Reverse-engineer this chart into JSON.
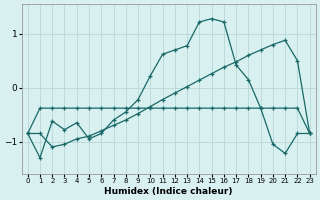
{
  "xlabel": "Humidex (Indice chaleur)",
  "bg_color": "#d8f0f0",
  "grid_color": "#b8d8d8",
  "line_color": "#1a6868",
  "xlim": [
    -0.5,
    23.5
  ],
  "ylim": [
    -1.6,
    1.55
  ],
  "yticks": [
    -1,
    0,
    1
  ],
  "xticks": [
    0,
    1,
    2,
    3,
    4,
    5,
    6,
    7,
    8,
    9,
    10,
    11,
    12,
    13,
    14,
    15,
    16,
    17,
    18,
    19,
    20,
    21,
    22,
    23
  ],
  "line1_x": [
    0,
    1,
    2,
    3,
    4,
    5,
    6,
    7,
    8,
    9,
    10,
    11,
    12,
    13,
    14,
    15,
    16,
    17,
    18,
    19,
    20,
    21,
    22,
    23
  ],
  "line1_y": [
    -0.85,
    -0.38,
    -0.38,
    -0.38,
    -0.38,
    -0.38,
    -0.38,
    -0.38,
    -0.38,
    -0.38,
    -0.38,
    -0.38,
    -0.38,
    -0.38,
    -0.38,
    -0.38,
    -0.38,
    -0.38,
    -0.38,
    -0.38,
    -0.38,
    -0.38,
    -0.38,
    -0.85
  ],
  "line2_x": [
    0,
    1,
    2,
    3,
    4,
    5,
    6,
    7,
    8,
    9,
    10,
    11,
    12,
    13,
    14,
    15,
    16,
    17,
    18,
    19,
    20,
    21,
    22,
    23
  ],
  "line2_y": [
    -0.85,
    -1.3,
    -0.62,
    -0.78,
    -0.65,
    -0.95,
    -0.85,
    -0.6,
    -0.45,
    -0.22,
    0.22,
    0.62,
    0.7,
    0.78,
    1.22,
    1.28,
    1.22,
    0.42,
    0.15,
    -0.38,
    -1.05,
    -1.22,
    -0.85,
    -0.85
  ],
  "line3_x": [
    0,
    1,
    2,
    3,
    4,
    5,
    6,
    7,
    8,
    9,
    10,
    11,
    12,
    13,
    14,
    15,
    16,
    17,
    18,
    19,
    20,
    21,
    22,
    23
  ],
  "line3_y": [
    -0.85,
    -0.85,
    -1.1,
    -1.05,
    -0.95,
    -0.9,
    -0.8,
    -0.7,
    -0.6,
    -0.48,
    -0.35,
    -0.22,
    -0.1,
    0.02,
    0.14,
    0.26,
    0.38,
    0.48,
    0.6,
    0.7,
    0.8,
    0.88,
    0.5,
    -0.85
  ]
}
